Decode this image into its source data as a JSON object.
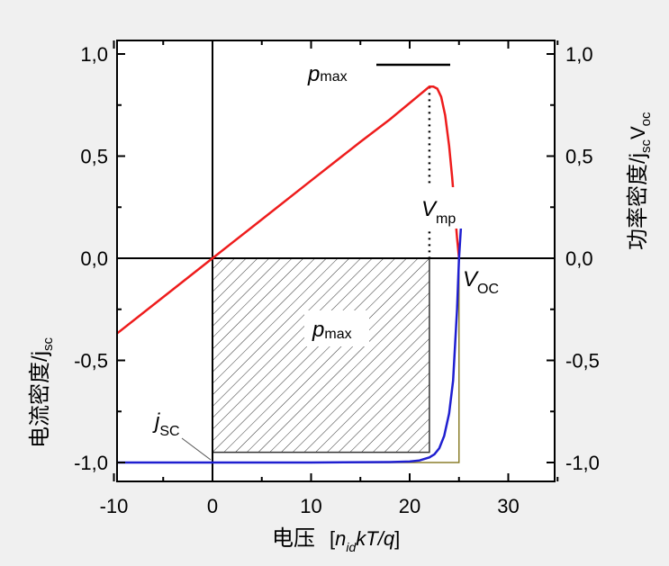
{
  "colors": {
    "background": "#f0f0f0",
    "plot_background": "#ffffff",
    "power_curve": "#ee1c1c",
    "current_curve": "#1f1fd0",
    "reference_rect": "#8a7e2a",
    "hatch": "#333333"
  },
  "chart_data": {
    "type": "line",
    "title": "",
    "xlabel": "电压",
    "xlabel_unit": "[n_id kT/q]",
    "xlabel_unit_parts": [
      "[",
      "n",
      "id",
      "kT/q",
      "]"
    ],
    "ylabel_left": "电流密度/j",
    "ylabel_left_sub": "sc",
    "ylabel_right": "功率密度/j",
    "ylabel_right_sub1": "sc",
    "ylabel_right_V": "V",
    "ylabel_right_sub2": "oc",
    "xlim": [
      -10,
      35
    ],
    "ylim": [
      -1.1,
      1.1
    ],
    "x_ticks": [
      -10,
      0,
      10,
      20,
      30
    ],
    "x_tick_labels": [
      "-10",
      "0",
      "10",
      "20",
      "30"
    ],
    "y_ticks": [
      -1.0,
      -0.5,
      0.0,
      0.5,
      1.0
    ],
    "y_tick_labels": [
      "-1,0",
      "-0,5",
      "0,0",
      "0,5",
      "1,0"
    ],
    "y_tick_labels_right": [
      "-1,0",
      "-0,5",
      "0,0",
      "0,5",
      "1,0"
    ],
    "series": [
      {
        "name": "功率密度",
        "color": "#ee1c1c",
        "x": [
          -10,
          -5,
          0,
          5,
          10,
          15,
          18,
          20,
          21,
          21.5,
          22,
          22.4,
          22.8,
          23.2,
          23.6,
          24.0,
          24.3,
          24.6,
          24.8,
          25.0
        ],
        "y": [
          -0.38,
          -0.19,
          0.0,
          0.19,
          0.38,
          0.57,
          0.68,
          0.76,
          0.8,
          0.82,
          0.84,
          0.84,
          0.83,
          0.79,
          0.7,
          0.55,
          0.4,
          0.22,
          0.1,
          0.0
        ]
      },
      {
        "name": "电流密度",
        "color": "#1f1fd0",
        "x": [
          -10,
          0,
          10,
          18,
          20,
          21,
          22,
          22.5,
          23,
          23.5,
          24,
          24.4,
          24.8,
          25.0,
          25.2
        ],
        "y": [
          -1.0,
          -1.0,
          -1.0,
          -0.998,
          -0.995,
          -0.99,
          -0.975,
          -0.96,
          -0.93,
          -0.87,
          -0.76,
          -0.6,
          -0.25,
          0.0,
          0.15
        ]
      }
    ],
    "mpp_rect": {
      "x": [
        0,
        22
      ],
      "y": [
        -0.95,
        0.0
      ]
    },
    "reference_rect": {
      "x": [
        0,
        25
      ],
      "y": [
        -1.0,
        0.0
      ]
    },
    "v_mp": 22,
    "v_oc": 25,
    "p_max": 0.84,
    "annotations": {
      "pmax_top_label": "p",
      "pmax_top_sub": "max",
      "pmax_inner_label": "p",
      "pmax_inner_sub": "max",
      "vmp_label": "V",
      "vmp_sub": "mp",
      "voc_label": "V",
      "voc_sub": "OC",
      "jsc_label": "j",
      "jsc_sub": "SC"
    }
  }
}
